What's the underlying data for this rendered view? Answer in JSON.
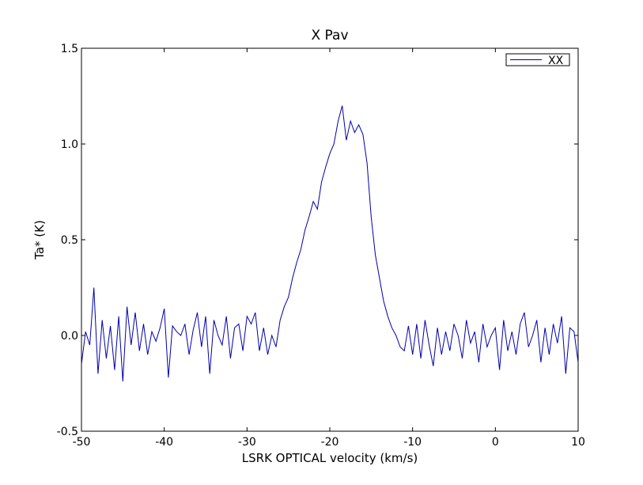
{
  "chart_data": {
    "type": "line",
    "title": "X Pav",
    "xlabel": "LSRK OPTICAL velocity (km/s)",
    "ylabel": "Ta* (K)",
    "xlim": [
      -50,
      10
    ],
    "ylim": [
      -0.5,
      1.5
    ],
    "xticks": [
      -50,
      -40,
      -30,
      -20,
      -10,
      0,
      10
    ],
    "yticks": [
      -0.5,
      0.0,
      0.5,
      1.0,
      1.5
    ],
    "xtick_labels": [
      "-50",
      "-40",
      "-30",
      "-20",
      "-10",
      "0",
      "10"
    ],
    "ytick_labels": [
      "-0.5",
      "0.0",
      "0.5",
      "1.0",
      "1.5"
    ],
    "grid": false,
    "legend_position": "top-right",
    "series": [
      {
        "name": "XX",
        "color": "#0000aa",
        "x": [
          -50.0,
          -49.5,
          -49.0,
          -48.5,
          -48.0,
          -47.5,
          -47.0,
          -46.5,
          -46.0,
          -45.5,
          -45.0,
          -44.5,
          -44.0,
          -43.5,
          -43.0,
          -42.5,
          -42.0,
          -41.5,
          -41.0,
          -40.5,
          -40.0,
          -39.5,
          -39.0,
          -38.5,
          -38.0,
          -37.5,
          -37.0,
          -36.5,
          -36.0,
          -35.5,
          -35.0,
          -34.5,
          -34.0,
          -33.5,
          -33.0,
          -32.5,
          -32.0,
          -31.5,
          -31.0,
          -30.5,
          -30.0,
          -29.5,
          -29.0,
          -28.5,
          -28.0,
          -27.5,
          -27.0,
          -26.5,
          -26.0,
          -25.5,
          -25.0,
          -24.5,
          -24.0,
          -23.5,
          -23.0,
          -22.5,
          -22.0,
          -21.5,
          -21.0,
          -20.5,
          -20.0,
          -19.5,
          -19.0,
          -18.5,
          -18.0,
          -17.5,
          -17.0,
          -16.5,
          -16.0,
          -15.5,
          -15.0,
          -14.5,
          -14.0,
          -13.5,
          -13.0,
          -12.5,
          -12.0,
          -11.5,
          -11.0,
          -10.5,
          -10.0,
          -9.5,
          -9.0,
          -8.5,
          -8.0,
          -7.5,
          -7.0,
          -6.5,
          -6.0,
          -5.5,
          -5.0,
          -4.5,
          -4.0,
          -3.5,
          -3.0,
          -2.5,
          -2.0,
          -1.5,
          -1.0,
          -0.5,
          0.0,
          0.5,
          1.0,
          1.5,
          2.0,
          2.5,
          3.0,
          3.5,
          4.0,
          4.5,
          5.0,
          5.5,
          6.0,
          6.5,
          7.0,
          7.5,
          8.0,
          8.5,
          9.0,
          9.5,
          10.0
        ],
        "y": [
          -0.15,
          0.02,
          -0.05,
          0.25,
          -0.2,
          0.08,
          -0.12,
          0.05,
          -0.18,
          0.1,
          -0.24,
          0.15,
          -0.05,
          0.12,
          -0.08,
          0.06,
          -0.1,
          0.02,
          -0.03,
          0.04,
          0.14,
          -0.22,
          0.05,
          0.02,
          0.0,
          0.06,
          -0.1,
          0.03,
          0.12,
          -0.06,
          0.1,
          -0.2,
          0.08,
          0.0,
          -0.05,
          0.1,
          -0.12,
          0.04,
          0.06,
          -0.08,
          0.1,
          0.06,
          0.12,
          -0.08,
          0.04,
          -0.1,
          0.0,
          -0.06,
          0.08,
          0.15,
          0.2,
          0.3,
          0.38,
          0.45,
          0.55,
          0.62,
          0.7,
          0.66,
          0.8,
          0.88,
          0.95,
          1.0,
          1.12,
          1.2,
          1.02,
          1.12,
          1.06,
          1.1,
          1.05,
          0.9,
          0.62,
          0.42,
          0.3,
          0.18,
          0.1,
          0.04,
          0.0,
          -0.06,
          -0.08,
          0.05,
          -0.1,
          0.06,
          -0.12,
          0.08,
          -0.05,
          -0.16,
          0.04,
          -0.1,
          0.02,
          -0.08,
          0.06,
          0.0,
          -0.12,
          0.08,
          -0.04,
          0.02,
          -0.14,
          0.06,
          -0.06,
          0.0,
          0.04,
          -0.18,
          0.08,
          -0.08,
          0.02,
          -0.1,
          0.06,
          0.12,
          -0.06,
          0.0,
          0.08,
          -0.14,
          0.04,
          -0.1,
          0.06,
          -0.04,
          0.1,
          -0.2,
          0.04,
          0.02,
          -0.14
        ]
      }
    ]
  }
}
